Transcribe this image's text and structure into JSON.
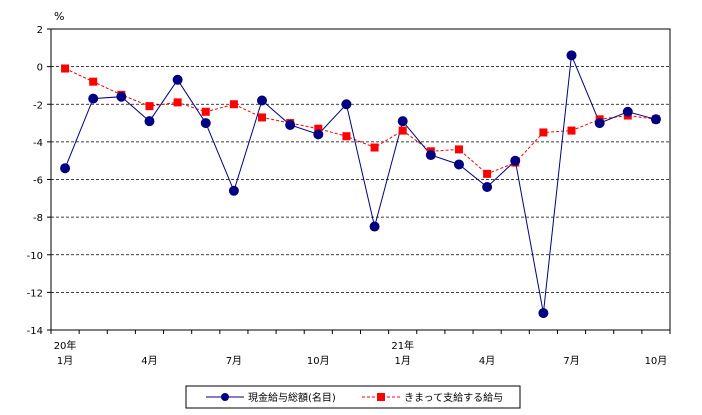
{
  "chart_data": {
    "type": "line",
    "ylabel": "%",
    "ylim": [
      -14,
      2
    ],
    "yticks": [
      2,
      0,
      -2,
      -4,
      -6,
      -8,
      -10,
      -12,
      -14
    ],
    "grid": "horizontal-dashed",
    "legend_position": "bottom",
    "x_labels": [
      {
        "index": 0,
        "line1": "20年",
        "line2": "1月"
      },
      {
        "index": 3,
        "line1": "",
        "line2": "4月"
      },
      {
        "index": 6,
        "line1": "",
        "line2": "7月"
      },
      {
        "index": 9,
        "line1": "",
        "line2": "10月"
      },
      {
        "index": 12,
        "line1": "21年",
        "line2": "1月"
      },
      {
        "index": 15,
        "line1": "",
        "line2": "4月"
      },
      {
        "index": 18,
        "line1": "",
        "line2": "7月"
      },
      {
        "index": 21,
        "line1": "",
        "line2": "10月"
      }
    ],
    "series": [
      {
        "name": "現金給与総額(名目)",
        "color": "#000080",
        "marker": "circle",
        "line_style": "solid",
        "values": [
          -5.4,
          -1.7,
          -1.6,
          -2.9,
          -0.7,
          -3.0,
          -6.6,
          -1.8,
          -3.1,
          -3.6,
          -2.0,
          -8.5,
          -2.9,
          -4.7,
          -5.2,
          -6.4,
          -5.0,
          -13.1,
          0.6,
          -3.0,
          -2.4,
          -2.8
        ]
      },
      {
        "name": "きまって支給する給与",
        "color": "#ff0000",
        "marker": "square",
        "line_style": "dashed",
        "values": [
          -0.1,
          -0.8,
          -1.5,
          -2.1,
          -1.9,
          -2.4,
          -2.0,
          -2.7,
          -3.0,
          -3.3,
          -3.7,
          -4.3,
          -3.4,
          -4.5,
          -4.4,
          -5.7,
          -5.1,
          -3.5,
          -3.4,
          -2.8,
          -2.6,
          -2.8
        ]
      }
    ]
  }
}
